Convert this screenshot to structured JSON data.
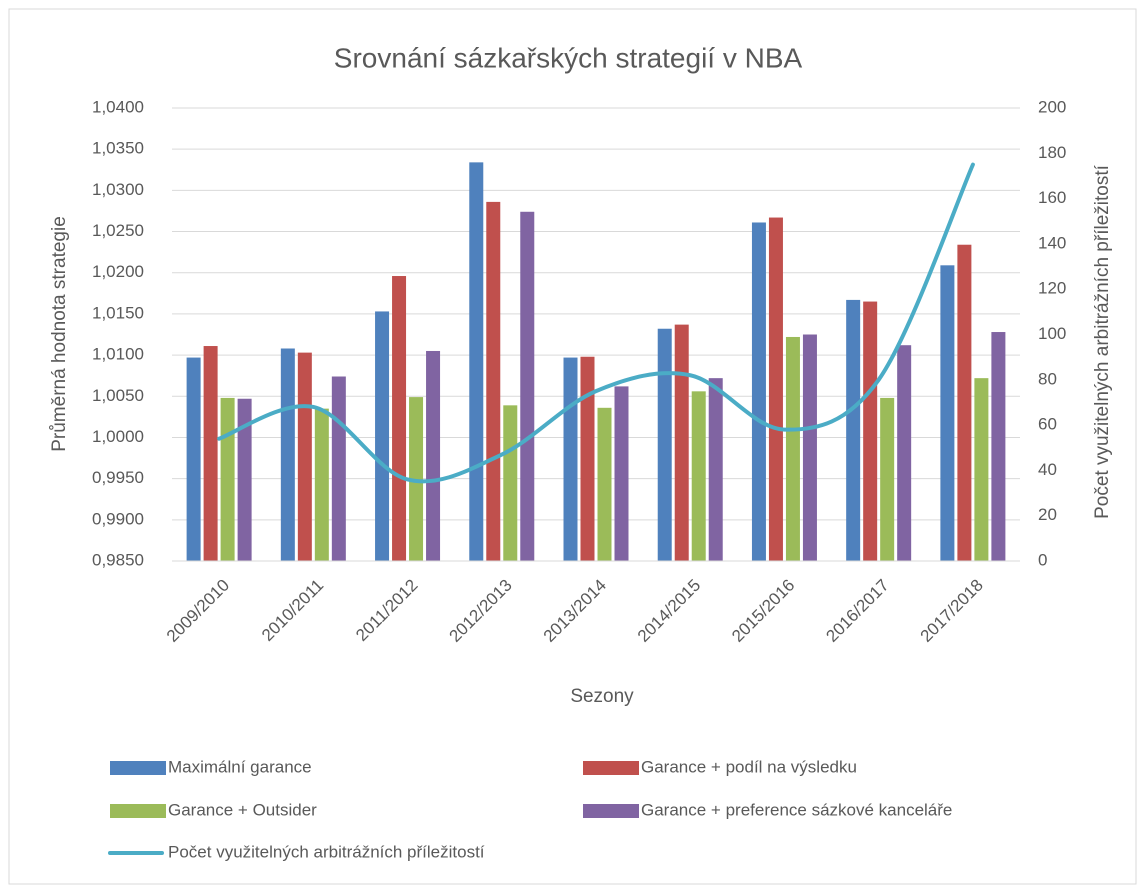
{
  "chart_data": {
    "type": "bar+line",
    "title": "Srovnání sázkařských strategií v NBA",
    "x_label": "Sezony",
    "y_label": "Průměrná hodnota strategie",
    "y2_label": "Počet využitelných arbitrážních příležitostí",
    "categories": [
      "2009/2010",
      "2010/2011",
      "2011/2012",
      "2012/2013",
      "2013/2014",
      "2014/2015",
      "2015/2016",
      "2016/2017",
      "2017/2018"
    ],
    "series": [
      {
        "name": "Maximální garance",
        "type": "bar",
        "color": "#4f81bd",
        "values": [
          1.0097,
          1.0108,
          1.0153,
          1.0334,
          1.0097,
          1.0132,
          1.0261,
          1.0167,
          1.0209
        ]
      },
      {
        "name": "Garance + podíl na výsledku",
        "type": "bar",
        "color": "#c0504d",
        "values": [
          1.0111,
          1.0103,
          1.0196,
          1.0286,
          1.0098,
          1.0137,
          1.0267,
          1.0165,
          1.0234
        ]
      },
      {
        "name": "Garance + Outsider",
        "type": "bar",
        "color": "#9bbb59",
        "values": [
          1.0048,
          1.0035,
          1.0049,
          1.0039,
          1.0036,
          1.0056,
          1.0122,
          1.0048,
          1.0072
        ]
      },
      {
        "name": "Garance + preference sázkové kanceláře",
        "type": "bar",
        "color": "#8064a2",
        "values": [
          1.0047,
          1.0074,
          1.0105,
          1.0274,
          1.0062,
          1.0072,
          1.0125,
          1.0112,
          1.0128
        ]
      },
      {
        "name": "Počet využitelných arbitrážních příležitostí",
        "type": "line",
        "axis": "y2",
        "smooth": true,
        "color": "#4bacc6",
        "values": [
          54,
          68,
          36,
          47,
          75,
          82,
          58,
          80,
          175
        ]
      }
    ],
    "ylim": [
      0.985,
      1.04
    ],
    "yticks": [
      {
        "value": 0.985,
        "label": "0,9850"
      },
      {
        "value": 0.99,
        "label": "0,9900"
      },
      {
        "value": 0.995,
        "label": "0,9950"
      },
      {
        "value": 1.0,
        "label": "1,0000"
      },
      {
        "value": 1.005,
        "label": "1,0050"
      },
      {
        "value": 1.01,
        "label": "1,0100"
      },
      {
        "value": 1.015,
        "label": "1,0150"
      },
      {
        "value": 1.02,
        "label": "1,0200"
      },
      {
        "value": 1.025,
        "label": "1,0250"
      },
      {
        "value": 1.03,
        "label": "1,0300"
      },
      {
        "value": 1.035,
        "label": "1,0350"
      },
      {
        "value": 1.04,
        "label": "1,0400"
      }
    ],
    "y2lim": [
      0,
      200
    ],
    "y2ticks": [
      0,
      20,
      40,
      60,
      80,
      100,
      120,
      140,
      160,
      180,
      200
    ],
    "grid": true,
    "legend": "bottom"
  }
}
